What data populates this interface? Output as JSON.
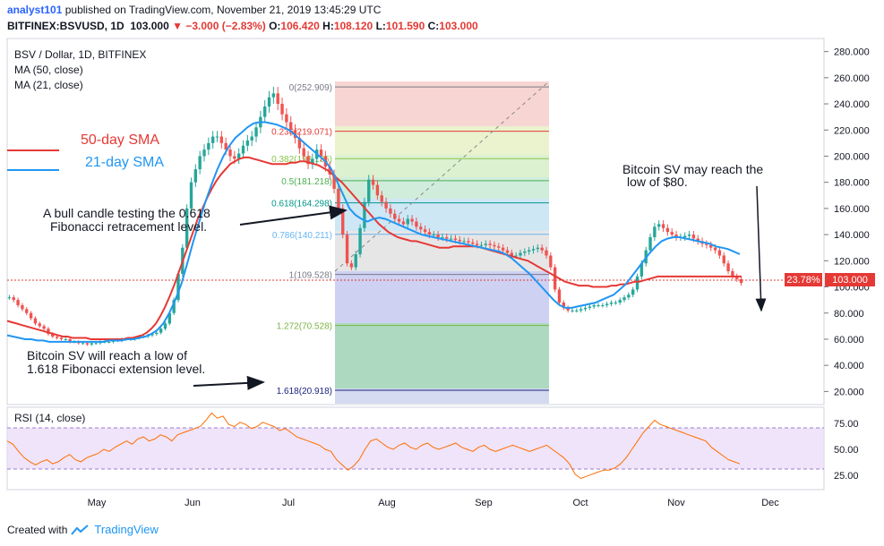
{
  "header": {
    "user": "analyst101",
    "published": " published on TradingView.com, November 21, 2019 13:45:29 UTC",
    "symbol": "BITFINEX:BSVUSD, 1D",
    "price": "103.000",
    "change": "−3.000 (−2.83%)",
    "open_label": "O:",
    "open": "106.420",
    "high_label": "H:",
    "high": "108.120",
    "low_label": "L:",
    "low": "101.590",
    "close_label": "C:",
    "close": "103.000"
  },
  "legend": {
    "title": "BSV / Dollar, 1D, BITFINEX",
    "ma50": "MA (50, close)",
    "ma21": "MA (21, close)",
    "sma50_label": "50-day SMA",
    "sma21_label": "21-day SMA"
  },
  "annotations": {
    "bull_line1": "A bull candle testing the 0.618",
    "bull_line2": "Fibonacci retracement level.",
    "bsv_low_line1": "Bitcoin SV will reach a low of",
    "bsv_low_line2": "1.618 Fibonacci extension level.",
    "reach_line1": "Bitcoin SV may reach the",
    "reach_line2": "low of $80."
  },
  "rsi": {
    "label": "RSI (14, close)",
    "ticks": [
      "75.00",
      "50.00",
      "25.00"
    ]
  },
  "price_tag": {
    "pct": "23.78%",
    "value": "103.000"
  },
  "footer": {
    "created": "Created with",
    "brand": "TradingView"
  },
  "colors": {
    "candle_up": "#26a69a",
    "candle_down": "#ef5350",
    "sma50": "#e53935",
    "sma21": "#2196f3",
    "rsi": "#ff6d00"
  },
  "chart_data": {
    "type": "candlestick",
    "title": "BSV / Dollar, 1D, BITFINEX",
    "y_axis_ticks": [
      "280.000",
      "260.000",
      "240.000",
      "220.000",
      "200.000",
      "180.000",
      "160.000",
      "140.000",
      "120.000",
      "100.000",
      "80.000",
      "60.000",
      "40.000",
      "20.000"
    ],
    "ylim": [
      10,
      290
    ],
    "x_axis_ticks": [
      "May",
      "Jun",
      "Jul",
      "Aug",
      "Sep",
      "Oct",
      "Nov",
      "Dec"
    ],
    "fibonacci_levels": [
      {
        "ratio": "0",
        "value": "252.909",
        "label": "0(252.909)"
      },
      {
        "ratio": "0.236",
        "value": "219.071",
        "label": "0.236(219.071)"
      },
      {
        "ratio": "0.382",
        "value": "198.135",
        "label": "0.382(198.135)"
      },
      {
        "ratio": "0.5",
        "value": "181.218",
        "label": "0.5(181.218)"
      },
      {
        "ratio": "0.618",
        "value": "164.298",
        "label": "0.618(164.298)"
      },
      {
        "ratio": "0.786",
        "value": "140.211",
        "label": "0.786(140.211)"
      },
      {
        "ratio": "1",
        "value": "109.528",
        "label": "1(109.528)"
      },
      {
        "ratio": "1.272",
        "value": "70.528",
        "label": "1.272(70.528)"
      },
      {
        "ratio": "1.618",
        "value": "20.918",
        "label": "1.618(20.918)"
      }
    ],
    "price_close_series": [
      92,
      90,
      86,
      83,
      80,
      76,
      72,
      70,
      68,
      64,
      62,
      61,
      60,
      60,
      58,
      58,
      57,
      57,
      56,
      57,
      57,
      58,
      58,
      58,
      59,
      59,
      60,
      60,
      60,
      61,
      62,
      62,
      63,
      64,
      65,
      68,
      72,
      80,
      90,
      110,
      130,
      160,
      180,
      190,
      200,
      205,
      210,
      215,
      215,
      210,
      205,
      200,
      198,
      202,
      208,
      212,
      215,
      222,
      230,
      238,
      245,
      248,
      240,
      232,
      226,
      220,
      214,
      206,
      200,
      194,
      198,
      205,
      200,
      192,
      186,
      175,
      160,
      140,
      118,
      115,
      125,
      145,
      165,
      182,
      178,
      170,
      165,
      160,
      156,
      152,
      150,
      148,
      152,
      150,
      146,
      144,
      142,
      140,
      140,
      138,
      138,
      137,
      137,
      136,
      135,
      135,
      134,
      133,
      132,
      132,
      133,
      132,
      131,
      130,
      128,
      126,
      124,
      124,
      126,
      127,
      128,
      129,
      130,
      128,
      124,
      115,
      98,
      88,
      84,
      82,
      82,
      82,
      83,
      84,
      85,
      86,
      86,
      86,
      87,
      88,
      88,
      90,
      92,
      94,
      98,
      108,
      118,
      128,
      138,
      146,
      148,
      145,
      142,
      140,
      138,
      138,
      139,
      140,
      137,
      135,
      133,
      132,
      130,
      128,
      124,
      118,
      112,
      108,
      106,
      103
    ],
    "sma50_series": [
      74,
      73,
      72,
      71,
      70,
      69,
      68,
      67,
      66,
      65,
      64,
      63,
      62,
      62,
      61,
      61,
      61,
      61,
      60,
      60,
      60,
      60,
      60,
      60,
      60,
      60,
      61,
      61,
      62,
      63,
      65,
      68,
      72,
      78,
      85,
      93,
      102,
      112,
      122,
      132,
      142,
      152,
      160,
      168,
      175,
      181,
      186,
      190,
      194,
      196,
      198,
      199,
      199,
      198,
      197,
      196,
      195,
      194,
      194,
      194,
      194,
      195,
      195,
      196,
      196,
      195,
      194,
      193,
      191,
      189,
      186,
      183,
      180,
      176,
      172,
      168,
      164,
      160,
      156,
      152,
      148,
      145,
      142,
      140,
      138,
      137,
      136,
      135,
      135,
      134,
      133,
      132,
      131,
      130,
      130,
      130,
      131,
      131,
      131,
      131,
      131,
      131,
      130,
      129,
      128,
      127,
      126,
      125,
      124,
      123,
      122,
      121,
      120,
      118,
      116,
      114,
      112,
      110,
      108,
      106,
      104,
      103,
      102,
      101,
      101,
      101,
      100,
      100,
      100,
      100,
      101,
      101,
      102,
      102,
      103,
      104,
      104,
      105,
      106,
      107,
      108,
      108,
      108,
      108,
      108,
      108,
      108,
      108,
      108,
      108,
      108,
      108,
      108,
      108,
      108,
      108,
      108,
      108,
      108
    ],
    "sma21_series": [
      63,
      62,
      61,
      60,
      60,
      59,
      59,
      58,
      58,
      58,
      58,
      58,
      58,
      58,
      58,
      58,
      58,
      59,
      59,
      59,
      60,
      60,
      61,
      62,
      64,
      67,
      72,
      80,
      90,
      102,
      118,
      135,
      150,
      165,
      178,
      190,
      200,
      208,
      214,
      218,
      222,
      225,
      226,
      226,
      225,
      224,
      222,
      220,
      216,
      212,
      208,
      204,
      200,
      196,
      190,
      180,
      170,
      160,
      155,
      152,
      150,
      152,
      153,
      152,
      150,
      148,
      146,
      144,
      142,
      140,
      139,
      138,
      137,
      136,
      135,
      134,
      133,
      132,
      131,
      130,
      129,
      128,
      127,
      125,
      122,
      118,
      114,
      110,
      105,
      100,
      95,
      90,
      86,
      84,
      84,
      85,
      86,
      87,
      88,
      90,
      92,
      94,
      98,
      102,
      108,
      114,
      120,
      126,
      131,
      135,
      137,
      138,
      138,
      137,
      136,
      135,
      134,
      133,
      131,
      130,
      129,
      127,
      125
    ],
    "rsi_series": [
      58,
      55,
      48,
      42,
      38,
      35,
      38,
      40,
      36,
      38,
      42,
      45,
      40,
      38,
      42,
      44,
      46,
      50,
      48,
      52,
      55,
      58,
      55,
      60,
      62,
      58,
      60,
      64,
      62,
      58,
      64,
      66,
      68,
      70,
      72,
      78,
      85,
      80,
      82,
      74,
      72,
      76,
      74,
      70,
      72,
      76,
      74,
      72,
      68,
      70,
      66,
      62,
      60,
      58,
      56,
      54,
      50,
      48,
      40,
      35,
      30,
      34,
      40,
      50,
      58,
      60,
      56,
      52,
      50,
      54,
      56,
      52,
      50,
      54,
      56,
      52,
      50,
      52,
      54,
      56,
      52,
      50,
      48,
      52,
      54,
      50,
      48,
      50,
      52,
      54,
      52,
      50,
      48,
      50,
      52,
      54,
      50,
      46,
      42,
      36,
      26,
      22,
      24,
      26,
      28,
      30,
      30,
      32,
      36,
      42,
      50,
      58,
      66,
      72,
      78,
      74,
      72,
      70,
      68,
      66,
      64,
      62,
      60,
      58,
      52,
      48,
      44,
      40,
      38,
      36
    ]
  }
}
